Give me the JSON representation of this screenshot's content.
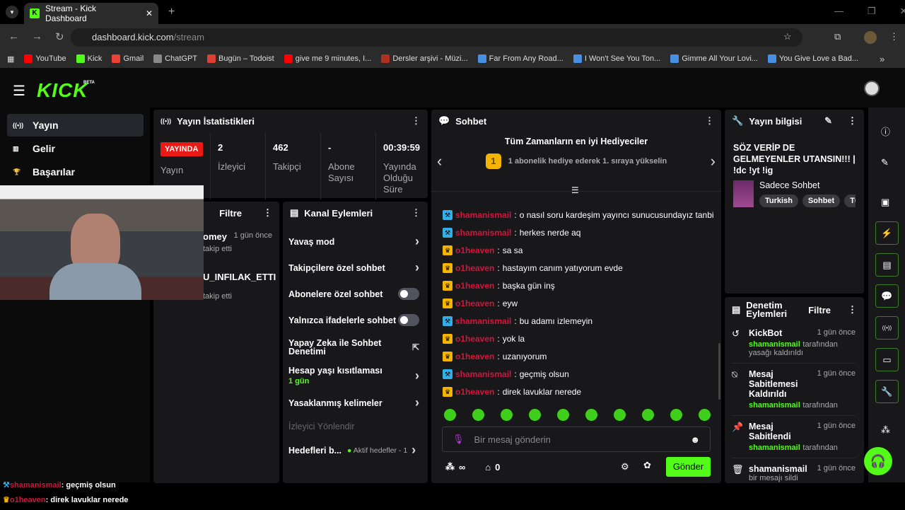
{
  "browser": {
    "tab_title": "Stream - Kick Dashboard",
    "url_host": "dashboard.kick.com",
    "url_path": "/stream",
    "bookmarks": [
      {
        "label": "YouTube",
        "color": "#ff0000"
      },
      {
        "label": "Kick",
        "color": "#53fc18"
      },
      {
        "label": "Gmail",
        "color": "#ea4335"
      },
      {
        "label": "ChatGPT",
        "color": "#888888"
      },
      {
        "label": "Bugün – Todoist",
        "color": "#db4035"
      },
      {
        "label": "give me 9 minutes, I...",
        "color": "#ff0000"
      },
      {
        "label": "Dersler arşivi - Müzi...",
        "color": "#b03020"
      },
      {
        "label": "Far From Any Road...",
        "color": "#4a90e2"
      },
      {
        "label": "I Won't See You Ton...",
        "color": "#4a90e2"
      },
      {
        "label": "Gimme All Your Lovi...",
        "color": "#4a90e2"
      },
      {
        "label": "You Give Love a Bad...",
        "color": "#4a90e2"
      }
    ]
  },
  "app": {
    "logo": "KICK",
    "beta": "BETA",
    "accent": "#53fc18"
  },
  "sidebar": {
    "items": [
      {
        "label": "Yayın",
        "icon": "broadcast-icon",
        "active": true
      },
      {
        "label": "Gelir",
        "icon": "revenue-icon"
      },
      {
        "label": "Başarılar",
        "icon": "trophy-icon"
      }
    ]
  },
  "stats": {
    "title": "Yayın İstatistikleri",
    "live_badge": "YAYINDA",
    "live_label": "Yayın",
    "items": [
      {
        "value": "2",
        "label": "İzleyici"
      },
      {
        "value": "462",
        "label": "Takipçi"
      },
      {
        "value": "-",
        "label": "Abone Sayısı"
      },
      {
        "value": "00:39:59",
        "label": "Yayında Olduğu Süre"
      }
    ]
  },
  "activity": {
    "filter": "Filtre",
    "items": [
      {
        "name": "omey",
        "time": "1 gün önce",
        "action": "takip etti"
      },
      {
        "name": "U_INFILAK_ETTI",
        "action": "takip etti"
      }
    ]
  },
  "channel_actions": {
    "title": "Kanal Eylemleri",
    "items": [
      {
        "label": "Yavaş mod",
        "type": "arrow"
      },
      {
        "label": "Takipçilere özel sohbet",
        "type": "arrow"
      },
      {
        "label": "Abonelere özel sohbet",
        "type": "toggle",
        "on": false
      },
      {
        "label": "Yalnızca ifadelerle sohbet",
        "type": "toggle",
        "on": false
      },
      {
        "label": "Yapay Zeka ile Sohbet Denetimi",
        "type": "external"
      },
      {
        "label": "Hesap yaşı kısıtlaması",
        "sub": "1 gün",
        "type": "arrow"
      },
      {
        "label": "Yasaklanmış kelimeler",
        "type": "arrow"
      }
    ],
    "section": "İzleyici Yönlendir",
    "goals_label": "Hedefleri b...",
    "goals_status": "Aktif hedefler - 1"
  },
  "chat": {
    "title": "Sohbet",
    "gifters_title": "Tüm Zamanların en iyi Hediyeciler",
    "rank": "1",
    "gifters_text": "1 abonelik hediye ederek 1. sıraya yükselin",
    "messages": [
      {
        "user": "shamanismail",
        "badge": "moderator",
        "text": "o nasıl soru kardeşim yayıncı sunucusundayız tanbi"
      },
      {
        "user": "shamanismail",
        "badge": "moderator",
        "text": "herkes nerde aq"
      },
      {
        "user": "o1heaven",
        "badge": "crown",
        "text": "sa sa"
      },
      {
        "user": "o1heaven",
        "badge": "crown",
        "text": "hastayım canım yatıyorum evde"
      },
      {
        "user": "o1heaven",
        "badge": "crown",
        "text": "başka gün inş"
      },
      {
        "user": "o1heaven",
        "badge": "crown",
        "text": "eyw"
      },
      {
        "user": "shamanismail",
        "badge": "moderator",
        "text": "bu adamı izlemeyin"
      },
      {
        "user": "o1heaven",
        "badge": "crown",
        "text": "yok la"
      },
      {
        "user": "o1heaven",
        "badge": "crown",
        "text": "uzanıyorum"
      },
      {
        "user": "shamanismail",
        "badge": "moderator",
        "text": "geçmiş olsun"
      },
      {
        "user": "o1heaven",
        "badge": "crown",
        "text": "direk lavuklar nerede"
      }
    ],
    "placeholder": "Bir mesaj gönderin",
    "points": "∞",
    "store_count": "0",
    "send": "Gönder"
  },
  "stream_info": {
    "title": "Yayın bilgisi",
    "stream_title": "SÖZ VERİP DE GELMEYENLER UTANSIN!!! | !dc !yt !ig",
    "category": "Sadece Sohbet",
    "tags": [
      "Turkish",
      "Sohbet",
      "Türk"
    ]
  },
  "moderation": {
    "title": "Denetim Eylemleri",
    "filter": "Filtre",
    "items": [
      {
        "icon": "unban-icon",
        "title": "KickBot",
        "time": "1 gün önce",
        "by": "shamanismail",
        "suffix": "tarafından",
        "detail": "yasağı kaldırıldı"
      },
      {
        "icon": "unpin-icon",
        "title": "Mesaj Sabitlemesi Kaldırıldı",
        "time": "1 gün önce",
        "by": "shamanismail",
        "suffix": "tarafından"
      },
      {
        "icon": "pin-icon",
        "title": "Mesaj Sabitlendi",
        "time": "1 gün önce",
        "by": "shamanismail",
        "suffix": "tarafından"
      },
      {
        "icon": "trash-icon",
        "title": "shamanismail",
        "time": "1 gün önce",
        "detail": "bir mesajı sildi"
      }
    ]
  },
  "overlay": [
    {
      "user": "shamanismail",
      "text": "geçmiş olsun"
    },
    {
      "user": "o1heaven",
      "text": "direk lavuklar nerede"
    }
  ]
}
